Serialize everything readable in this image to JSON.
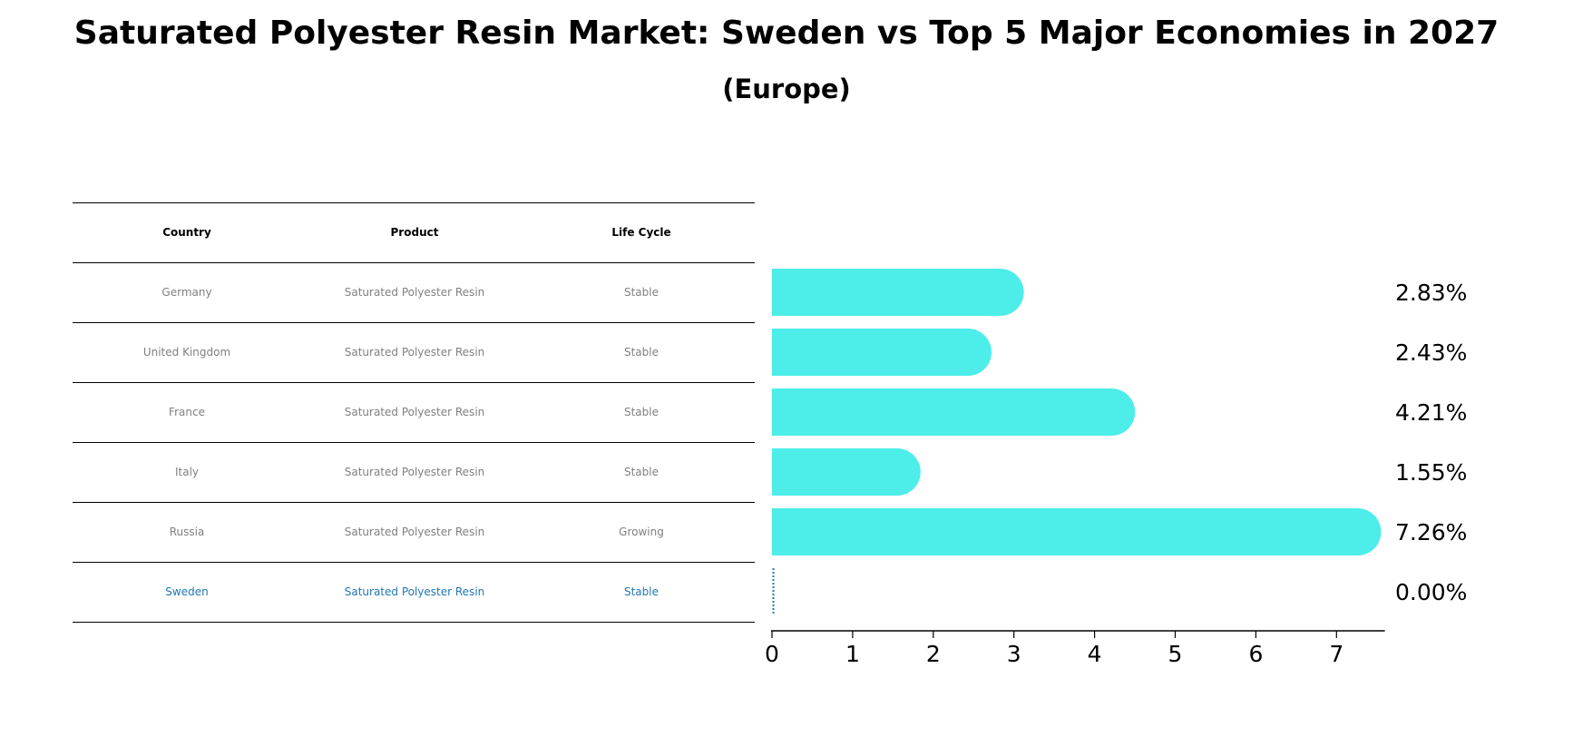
{
  "header": {
    "title": "Saturated Polyester Resin Market: Sweden vs Top 5 Major Economies in 2027",
    "subtitle": "(Europe)"
  },
  "table": {
    "columns": [
      "Country",
      "Product",
      "Life Cycle"
    ],
    "rows": [
      {
        "country": "Germany",
        "product": "Saturated Polyester Resin",
        "life_cycle": "Stable"
      },
      {
        "country": "United Kingdom",
        "product": "Saturated Polyester Resin",
        "life_cycle": "Stable"
      },
      {
        "country": "France",
        "product": "Saturated Polyester Resin",
        "life_cycle": "Stable"
      },
      {
        "country": "Italy",
        "product": "Saturated Polyester Resin",
        "life_cycle": "Stable"
      },
      {
        "country": "Russia",
        "product": "Saturated Polyester Resin",
        "life_cycle": "Growing"
      },
      {
        "country": "Sweden",
        "product": "Saturated Polyester Resin",
        "life_cycle": "Stable"
      }
    ]
  },
  "colors": {
    "bar": "#4dede9",
    "highlight": "#1f77b4",
    "muted_text": "#808080"
  },
  "chart_data": {
    "type": "bar",
    "orientation": "horizontal",
    "categories": [
      "Germany",
      "United Kingdom",
      "France",
      "Italy",
      "Russia",
      "Sweden"
    ],
    "values": [
      2.83,
      2.43,
      4.21,
      1.55,
      7.26,
      0.0
    ],
    "value_labels": [
      "2.83%",
      "2.43%",
      "4.21%",
      "1.55%",
      "7.26%",
      "0.00%"
    ],
    "xticks": [
      0,
      1,
      2,
      3,
      4,
      5,
      6,
      7
    ],
    "xlim": [
      0,
      7.6
    ],
    "title": "Saturated Polyester Resin Market: Sweden vs Top 5 Major Economies in 2027",
    "subtitle": "(Europe)",
    "xlabel": "",
    "ylabel": "",
    "grid": false,
    "highlighted_category": "Sweden"
  }
}
